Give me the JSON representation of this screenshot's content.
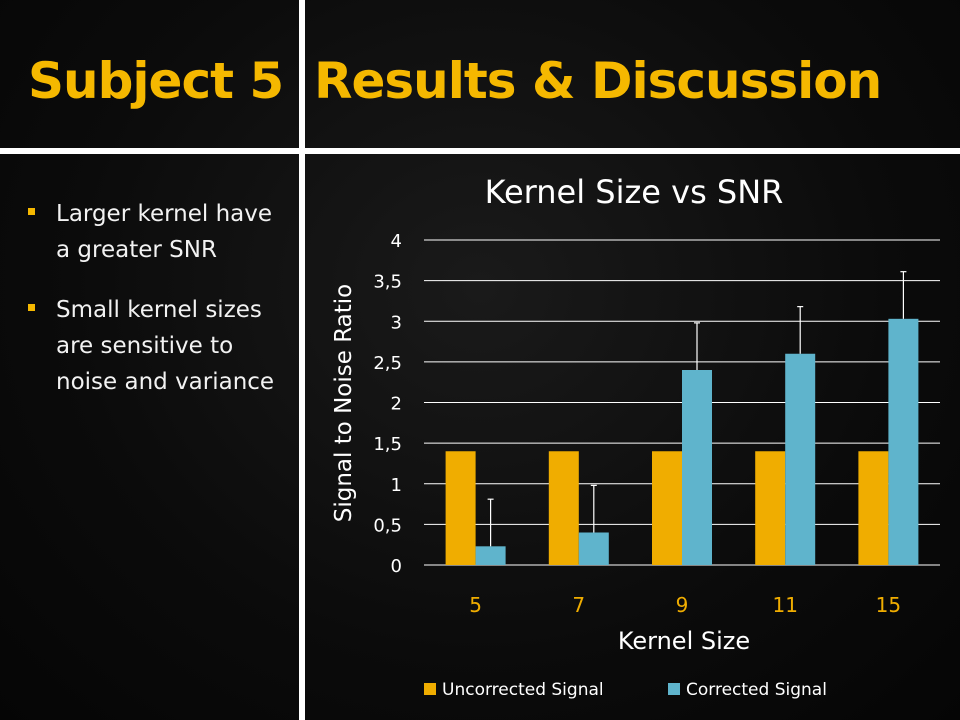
{
  "slide": {
    "title_left": "Subject 5",
    "title_right": "Results & Discussion",
    "accent_color": "#f5b800",
    "bullets": [
      "Larger kernel have a greater SNR",
      "Small kernel sizes are sensitive to noise and variance"
    ]
  },
  "chart_data": {
    "type": "bar",
    "title": "Kernel Size vs SNR",
    "xlabel": "Kernel Size",
    "ylabel": "Signal to Noise Ratio",
    "categories": [
      "5",
      "7",
      "9",
      "11",
      "15"
    ],
    "yticks": [
      "0",
      "0,5",
      "1",
      "1,5",
      "2",
      "2,5",
      "3",
      "3,5",
      "4"
    ],
    "ylim": [
      0,
      4
    ],
    "grid": true,
    "legend": "bottom",
    "series": [
      {
        "name": "Uncorrected Signal",
        "color": "#f0ad00",
        "values": [
          1.4,
          1.4,
          1.4,
          1.4,
          1.4
        ],
        "errors": [
          0,
          0,
          0,
          0,
          0
        ]
      },
      {
        "name": "Corrected Signal",
        "color": "#5fb4cc",
        "values": [
          0.23,
          0.4,
          2.4,
          2.6,
          3.03
        ],
        "errors": [
          0.58,
          0.58,
          0.58,
          0.58,
          0.58
        ]
      }
    ]
  }
}
